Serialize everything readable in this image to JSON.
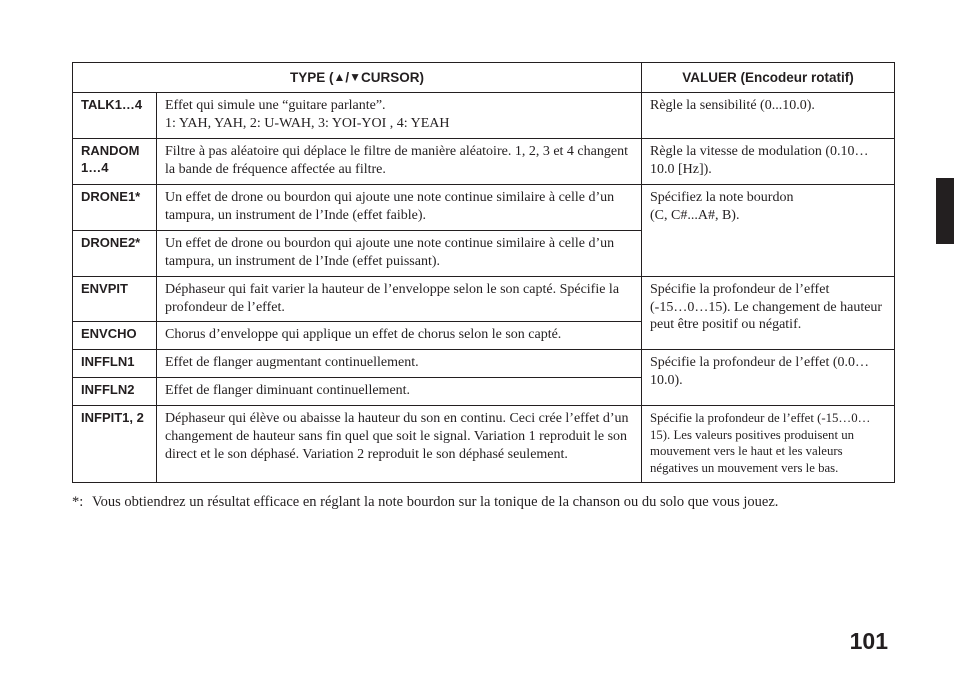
{
  "header": {
    "type_label": "TYPE (",
    "type_label_tail": "CURSOR)",
    "valuer_label": "VALUER (Encodeur rotatif)"
  },
  "rows": {
    "talk": {
      "name": "TALK1…4",
      "desc": "Effet qui simule une “guitare parlante”.\n1: YAH, YAH, 2: U-WAH, 3: YOI-YOI , 4: YEAH",
      "val": "Règle la sensibilité (0...10.0)."
    },
    "random": {
      "name": "RANDOM 1…4",
      "desc": "Filtre à pas aléatoire qui déplace le filtre de manière aléatoire. 1, 2, 3 et 4 changent la bande de fréquence affectée au filtre.",
      "val": "Règle la vitesse de modulation (0.10…10.0 [Hz])."
    },
    "drone1": {
      "name": "DRONE1*",
      "desc": "Un effet de drone ou bourdon qui ajoute une note continue similaire à celle d’un tampura, un instrument de l’Inde (effet faible)."
    },
    "drone2": {
      "name": "DRONE2*",
      "desc": "Un effet de drone ou bourdon qui ajoute une note continue similaire à celle d’un tampura, un instrument de l’Inde (effet puissant).",
      "val": "Spécifiez la note bourdon\n(C, C#...A#, B)."
    },
    "envpit": {
      "name": "ENVPIT",
      "desc": "Déphaseur qui fait varier la hauteur de l’enveloppe selon le son capté. Spécifie la profondeur de l’effet."
    },
    "envcho": {
      "name": "ENVCHO",
      "desc": "Chorus d’enveloppe qui applique un effet de chorus selon le son capté.",
      "val": "Spécifie la profondeur de l’effet\n(-15…0…15). Le changement de hauteur peut être positif ou négatif."
    },
    "inffln1": {
      "name": "INFFLN1",
      "desc": "Effet de flanger augmentant continuellement."
    },
    "inffln2": {
      "name": "INFFLN2",
      "desc": "Effet de flanger diminuant continuellement.",
      "val": "Spécifie la profondeur de l’effet (0.0…10.0)."
    },
    "infpit": {
      "name": "INFPIT1, 2",
      "desc": "Déphaseur qui élève ou abaisse la hauteur du son en continu. Ceci crée l’effet d’un changement de hauteur sans fin quel que soit le signal. Variation 1 reproduit le son direct et le son déphasé. Variation 2 reproduit le son déphasé seulement.",
      "val": "Spécifie la profondeur de l’effet (-15…0…15). Les valeurs positives produisent un mouvement vers le haut et les valeurs négatives un mouvement vers le bas."
    }
  },
  "footnote": "Vous obtiendrez un résultat efficace en réglant la note bourdon sur la tonique de la chanson ou du solo que vous jouez.",
  "page_number": "101"
}
